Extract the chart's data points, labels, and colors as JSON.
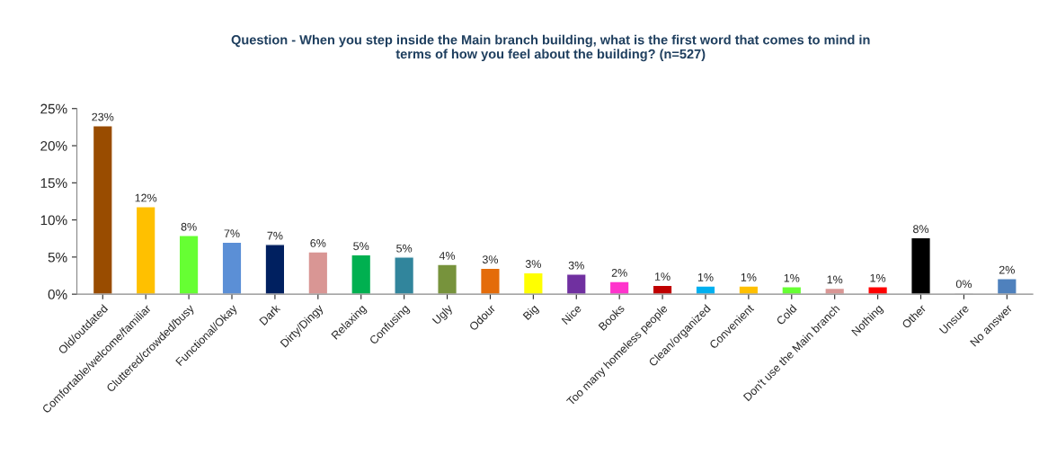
{
  "chart_data": {
    "type": "bar",
    "title": "Question - When you step inside the Main branch building, what is the first word that comes to mind in\nterms of how you feel about the building? (n=527)",
    "categories": [
      "Old/outdated",
      "Comfortable/welcome/familiar",
      "Cluttered/crowded/busy",
      "Functional/Okay",
      "Dark",
      "Dirty/Dingy",
      "Relaxing",
      "Confusing",
      "Ugly",
      "Odour",
      "Big",
      "Nice",
      "Books",
      "Too many homeless people",
      "Clean/organized",
      "Convenient",
      "Cold",
      "Don't use the Main branch",
      "Nothing",
      "Other",
      "Unsure",
      "No answer"
    ],
    "values": [
      22.7,
      11.8,
      7.9,
      7.0,
      6.7,
      5.7,
      5.3,
      5.0,
      4.0,
      3.5,
      2.9,
      2.7,
      1.7,
      1.2,
      1.1,
      1.1,
      1.0,
      0.8,
      1.0,
      7.6,
      0.2,
      2.1
    ],
    "value_labels": [
      "23%",
      "12%",
      "8%",
      "7%",
      "7%",
      "6%",
      "5%",
      "5%",
      "4%",
      "3%",
      "3%",
      "3%",
      "2%",
      "1%",
      "1%",
      "1%",
      "1%",
      "1%",
      "1%",
      "8%",
      "0%",
      "2%"
    ],
    "colors": [
      "#994c00",
      "#ffc000",
      "#66ff33",
      "#5b8fd6",
      "#002060",
      "#d99694",
      "#00b050",
      "#31859c",
      "#77933c",
      "#e46c0a",
      "#ffff00",
      "#7030a0",
      "#ff33cc",
      "#c00000",
      "#00b0f0",
      "#ffc000",
      "#66ff33",
      "#d99694",
      "#ff0000",
      "#000000",
      "#bfbfbf",
      "#4f81bd"
    ],
    "ylim": [
      0,
      25
    ],
    "yticks": [
      {
        "value": 0,
        "label": "0%"
      },
      {
        "value": 5,
        "label": "5%"
      },
      {
        "value": 10,
        "label": "10%"
      },
      {
        "value": 15,
        "label": "15%"
      },
      {
        "value": 20,
        "label": "20%"
      },
      {
        "value": 25,
        "label": "25%"
      }
    ],
    "grid": false,
    "legend": false
  }
}
